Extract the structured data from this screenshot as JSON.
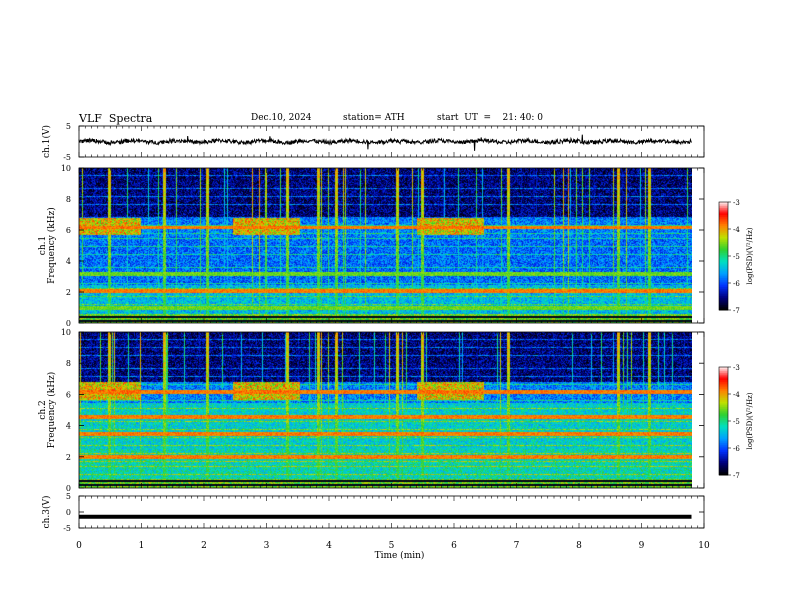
{
  "header": {
    "title": "VLF  Spectra",
    "date": "Dec.10, 2024",
    "station": "station= ATH",
    "start_ut": "start  UT  =    21: 40: 0"
  },
  "chart_data": [
    {
      "type": "line",
      "panel": "ch1-waveform",
      "ylabel": "ch.1(V)",
      "ylim": [
        -5,
        5
      ],
      "yticks": [
        5,
        -5
      ],
      "xlim": [
        0,
        10
      ],
      "series": [
        {
          "values_description_free": true,
          "x_range": [
            0,
            9.8
          ],
          "baseline": 0,
          "amplitude_approx": 1
        }
      ]
    },
    {
      "type": "heatmap",
      "panel": "ch1-spectrogram",
      "ylabel": "ch.1\nFrequency  (kHz)",
      "ylim": [
        0,
        10
      ],
      "yticks": [
        0,
        2,
        4,
        6,
        8,
        10
      ],
      "xlim": [
        0,
        10
      ],
      "x_range_data": [
        0,
        9.8
      ],
      "colorbar": {
        "label": "log(PSD)(V²/Hz)",
        "range": [
          -7,
          -3
        ],
        "ticks": [
          -3,
          -4,
          -5,
          -6,
          -7
        ]
      },
      "bands_khz": [
        {
          "f": 2.1,
          "level": "high"
        },
        {
          "f": 6.2,
          "level": "high"
        },
        {
          "f": 1.0,
          "level": "medium"
        },
        {
          "f": 3.2,
          "level": "medium"
        }
      ]
    },
    {
      "type": "heatmap",
      "panel": "ch2-spectrogram",
      "ylabel": "ch.2\nFrequency  (kHz)",
      "ylim": [
        0,
        10
      ],
      "yticks": [
        0,
        2,
        4,
        6,
        8,
        10
      ],
      "xlim": [
        0,
        10
      ],
      "x_range_data": [
        0,
        9.8
      ],
      "colorbar": {
        "label": "log(PSD)(V²/Hz)",
        "range": [
          -7,
          -3
        ],
        "ticks": [
          -3,
          -4,
          -5,
          -6,
          -7
        ]
      },
      "bands_khz": [
        {
          "f": 2.0,
          "level": "high"
        },
        {
          "f": 3.5,
          "level": "high"
        },
        {
          "f": 4.6,
          "level": "high"
        },
        {
          "f": 6.2,
          "level": "high"
        }
      ]
    },
    {
      "type": "line",
      "panel": "ch3-waveform",
      "ylabel": "ch.3(V)",
      "ylim": [
        -5,
        5
      ],
      "yticks": [
        5,
        0,
        -5
      ],
      "xlim": [
        0,
        10
      ],
      "series": [
        {
          "constant": -1.5,
          "x_range": [
            0,
            9.8
          ]
        }
      ]
    }
  ],
  "x_axis": {
    "label": "Time  (min)",
    "ticks": [
      0,
      1,
      2,
      3,
      4,
      5,
      6,
      7,
      8,
      9,
      10
    ]
  },
  "colors": {
    "colormap": [
      "#000000",
      "#000080",
      "#0033ff",
      "#00a0ff",
      "#00e0c0",
      "#30d030",
      "#c0e000",
      "#ff8000",
      "#ff0000",
      "#ffffff"
    ]
  }
}
